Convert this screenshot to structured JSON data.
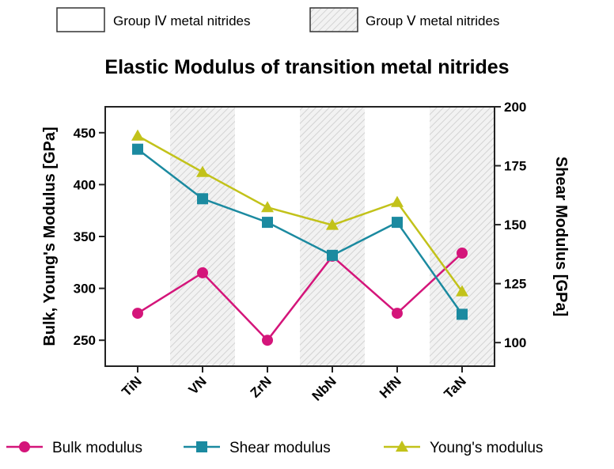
{
  "chart_data": {
    "type": "line",
    "title": "Elastic Modulus of transition metal nitrides",
    "categories": [
      "TiN",
      "VN",
      "ZrN",
      "NbN",
      "HfN",
      "TaN"
    ],
    "group_legend": [
      {
        "label": "Group Ⅳ metal nitrides",
        "pattern": "none"
      },
      {
        "label": "Group Ⅴ metal nitrides",
        "pattern": "hatched"
      }
    ],
    "shaded_categories": [
      "VN",
      "NbN",
      "TaN"
    ],
    "left_axis": {
      "label": "Bulk, Young's Modulus [GPa]",
      "ylim": [
        225,
        475
      ],
      "ticks": [
        250,
        300,
        350,
        400,
        450
      ],
      "tick_labels": [
        "250",
        "300",
        "350",
        "400",
        "450"
      ]
    },
    "right_axis": {
      "label": "Shear Modulus [GPa]",
      "ylim": [
        90,
        200
      ],
      "ticks": [
        100,
        125,
        150,
        175,
        200
      ],
      "tick_labels": [
        "100",
        "125",
        "150",
        "175",
        "200"
      ]
    },
    "series": [
      {
        "name": "Bulk modulus",
        "axis": "left",
        "marker": "circle",
        "color": "#d4157a",
        "values": [
          276,
          315,
          250,
          331,
          276,
          334
        ]
      },
      {
        "name": "Shear modulus",
        "axis": "right",
        "marker": "square",
        "color": "#1b8aa0",
        "values": [
          182,
          161,
          151,
          137,
          151,
          112
        ]
      },
      {
        "name": "Young's modulus",
        "axis": "left",
        "marker": "triangle",
        "color": "#c2c21a",
        "values": [
          447,
          412,
          378,
          361,
          383,
          297
        ]
      }
    ]
  }
}
